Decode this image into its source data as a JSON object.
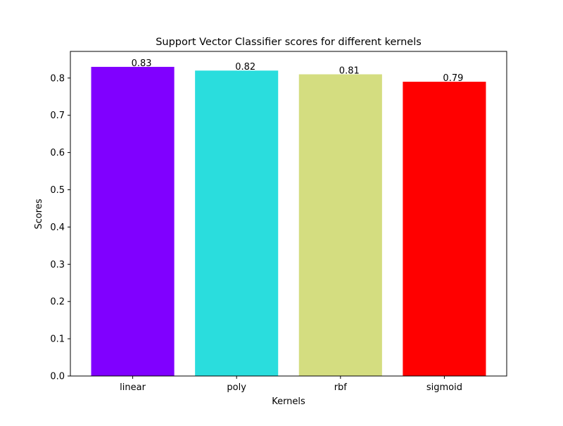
{
  "chart_data": {
    "type": "bar",
    "title": "Support Vector Classifier scores for different kernels",
    "xlabel": "Kernels",
    "ylabel": "Scores",
    "categories": [
      "linear",
      "poly",
      "rbf",
      "sigmoid"
    ],
    "values": [
      0.83,
      0.82,
      0.81,
      0.79
    ],
    "value_labels": [
      "0.83",
      "0.82",
      "0.81",
      "0.79"
    ],
    "colors": [
      "#8000ff",
      "#2adddd",
      "#d4dd80",
      "#ff0000"
    ],
    "ylim": [
      0,
      0.8715
    ],
    "yticks": [
      0.0,
      0.1,
      0.2,
      0.3,
      0.4,
      0.5,
      0.6,
      0.7,
      0.8
    ],
    "ytick_labels": [
      "0.0",
      "0.1",
      "0.2",
      "0.3",
      "0.4",
      "0.5",
      "0.6",
      "0.7",
      "0.8"
    ],
    "grid": false,
    "legend": "none"
  }
}
